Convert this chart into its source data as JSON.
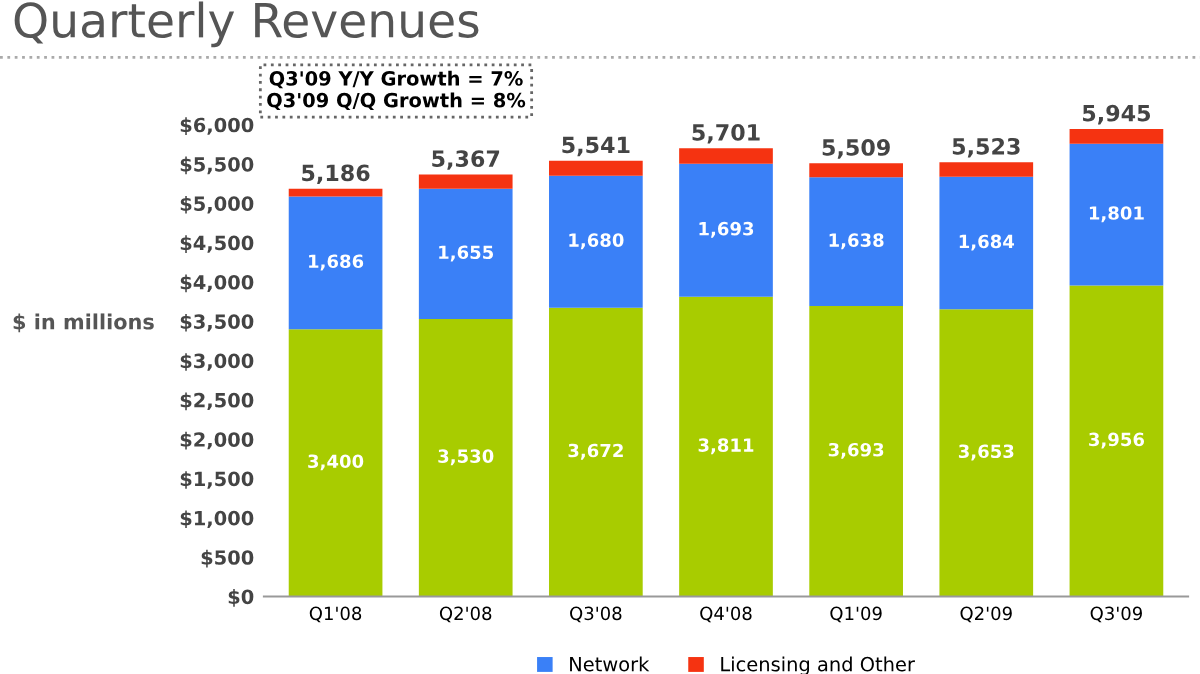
{
  "chart_data": {
    "type": "bar",
    "stacked": true,
    "title": "Quarterly Revenues",
    "ylabel": "$ in millions",
    "annotations": [
      "Q3'09 Y/Y Growth = 7%\nQ3'09 Q/Q Growth = 8%"
    ],
    "categories": [
      "Q1'08",
      "Q2'08",
      "Q3'08",
      "Q4'08",
      "Q1'09",
      "Q2'09",
      "Q3'09"
    ],
    "series": [
      {
        "color": "#a8cc00",
        "values": [
          3400,
          3530,
          3672,
          3811,
          3693,
          3653,
          3956
        ],
        "value_labels": [
          "3,400",
          "3,530",
          "3,672",
          "3,811",
          "3,693",
          "3,653",
          "3,956"
        ]
      },
      {
        "name": "Network",
        "color": "#3a80f7",
        "values": [
          1686,
          1655,
          1680,
          1693,
          1638,
          1684,
          1801
        ],
        "value_labels": [
          "1,686",
          "1,655",
          "1,680",
          "1,693",
          "1,638",
          "1,684",
          "1,801"
        ]
      },
      {
        "name": "Licensing and Other",
        "color": "#f53311",
        "values": [
          100,
          182,
          189,
          197,
          178,
          186,
          188
        ]
      }
    ],
    "totals": [
      "5,186",
      "5,367",
      "5,541",
      "5,701",
      "5,509",
      "5,523",
      "5,945"
    ],
    "ylim": [
      0,
      6000
    ],
    "yticks": [
      {
        "value": 0,
        "label": "$0"
      },
      {
        "value": 500,
        "label": "$500"
      },
      {
        "value": 1000,
        "label": "$1,000"
      },
      {
        "value": 1500,
        "label": "$1,500"
      },
      {
        "value": 2000,
        "label": "$2,000"
      },
      {
        "value": 2500,
        "label": "$2,500"
      },
      {
        "value": 3000,
        "label": "$3,000"
      },
      {
        "value": 3500,
        "label": "$3,500"
      },
      {
        "value": 4000,
        "label": "$4,000"
      },
      {
        "value": 4500,
        "label": "$4,500"
      },
      {
        "value": 5000,
        "label": "$5,000"
      },
      {
        "value": 5500,
        "label": "$5,500"
      },
      {
        "value": 6000,
        "label": "$6,000"
      }
    ],
    "grid": false,
    "legend": "bottom"
  }
}
